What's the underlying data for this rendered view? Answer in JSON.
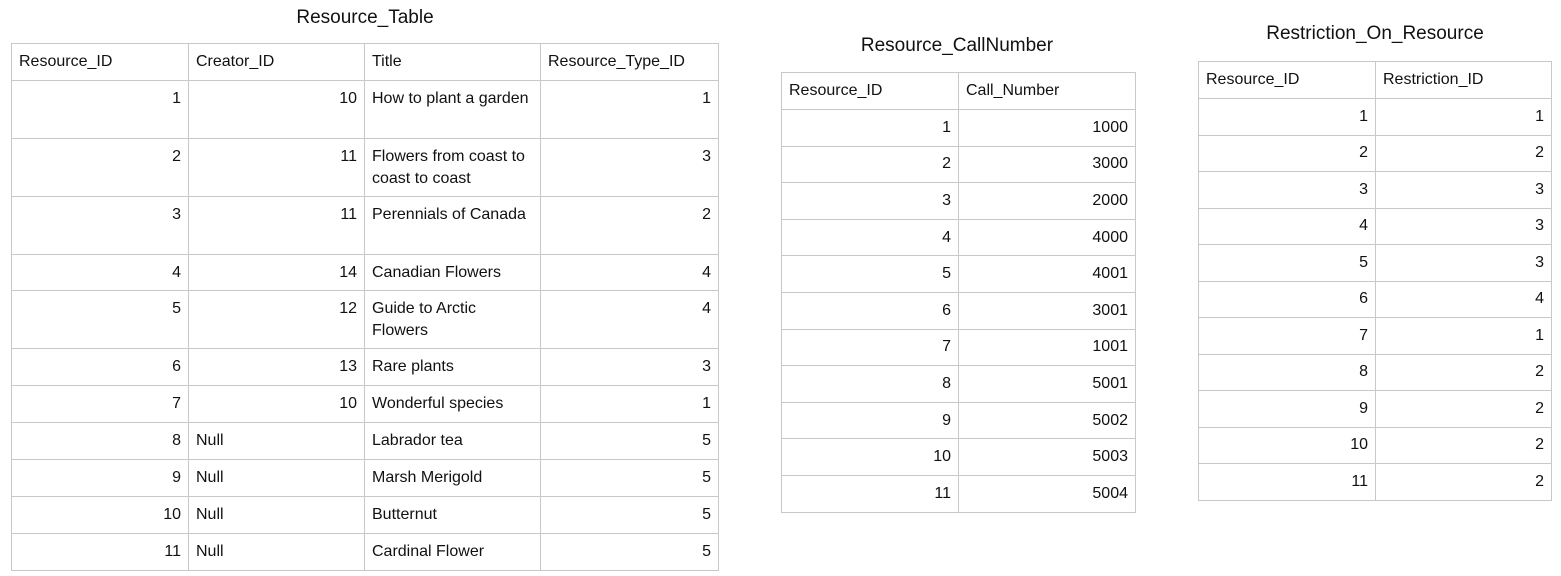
{
  "resource_table": {
    "title": "Resource_Table",
    "headers": [
      "Resource_ID",
      "Creator_ID",
      "Title",
      "Resource_Type_ID"
    ],
    "rows": [
      [
        "1",
        "10",
        "How to plant a garden",
        "1"
      ],
      [
        "2",
        "11",
        "Flowers from coast to coast to coast",
        "3"
      ],
      [
        "3",
        "11",
        "Perennials of Canada",
        "2"
      ],
      [
        "4",
        "14",
        "Canadian Flowers",
        "4"
      ],
      [
        "5",
        "12",
        "Guide to Arctic Flowers",
        "4"
      ],
      [
        "6",
        "13",
        "Rare plants",
        "3"
      ],
      [
        "7",
        "10",
        "Wonderful species",
        "1"
      ],
      [
        "8",
        "Null",
        "Labrador tea",
        "5"
      ],
      [
        "9",
        "Null",
        "Marsh Merigold",
        "5"
      ],
      [
        "10",
        "Null",
        "Butternut",
        "5"
      ],
      [
        "11",
        "Null",
        "Cardinal Flower",
        "5"
      ]
    ]
  },
  "resource_callnumber": {
    "title": "Resource_CallNumber",
    "headers": [
      "Resource_ID",
      "Call_Number"
    ],
    "rows": [
      [
        "1",
        "1000"
      ],
      [
        "2",
        "3000"
      ],
      [
        "3",
        "2000"
      ],
      [
        "4",
        "4000"
      ],
      [
        "5",
        "4001"
      ],
      [
        "6",
        "3001"
      ],
      [
        "7",
        "1001"
      ],
      [
        "8",
        "5001"
      ],
      [
        "9",
        "5002"
      ],
      [
        "10",
        "5003"
      ],
      [
        "11",
        "5004"
      ]
    ]
  },
  "restriction_on_resource": {
    "title": "Restriction_On_Resource",
    "headers": [
      "Resource_ID",
      "Restriction_ID"
    ],
    "rows": [
      [
        "1",
        "1"
      ],
      [
        "2",
        "2"
      ],
      [
        "3",
        "3"
      ],
      [
        "4",
        "3"
      ],
      [
        "5",
        "3"
      ],
      [
        "6",
        "4"
      ],
      [
        "7",
        "1"
      ],
      [
        "8",
        "2"
      ],
      [
        "9",
        "2"
      ],
      [
        "10",
        "2"
      ],
      [
        "11",
        "2"
      ]
    ]
  }
}
